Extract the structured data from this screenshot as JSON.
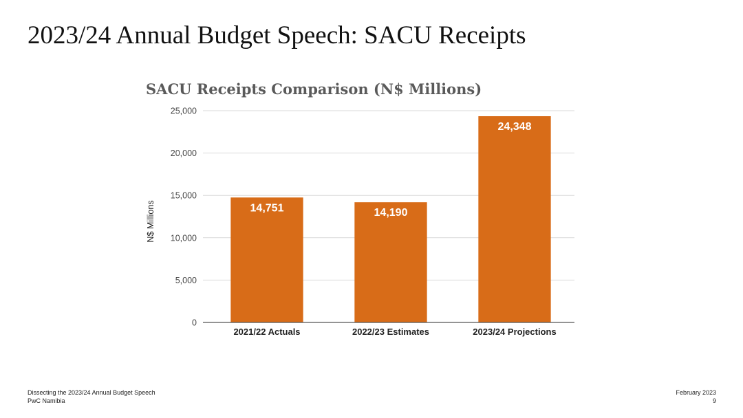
{
  "slide": {
    "title": "2023/24 Annual Budget Speech: SACU Receipts"
  },
  "footer": {
    "left_line1": "Dissecting the 2023/24 Annual Budget Speech",
    "left_line2": "PwC Namibia",
    "right_line1": "February 2023",
    "page_number": "9"
  },
  "chart_data": {
    "type": "bar",
    "title": "SACU Receipts Comparison (N$ Millions)",
    "xlabel": "",
    "ylabel": "N$ Millions",
    "categories": [
      "2021/22 Actuals",
      "2022/23 Estimates",
      "2023/24 Projections"
    ],
    "values": [
      14751,
      14190,
      24348
    ],
    "value_labels": [
      "14,751",
      "14,190",
      "24,348"
    ],
    "ylim": [
      0,
      25000
    ],
    "yticks": [
      0,
      5000,
      10000,
      15000,
      20000,
      25000
    ],
    "ytick_labels": [
      "0",
      "5,000",
      "10,000",
      "15,000",
      "20,000",
      "25,000"
    ],
    "grid": true,
    "bar_color": "#d86c18"
  }
}
